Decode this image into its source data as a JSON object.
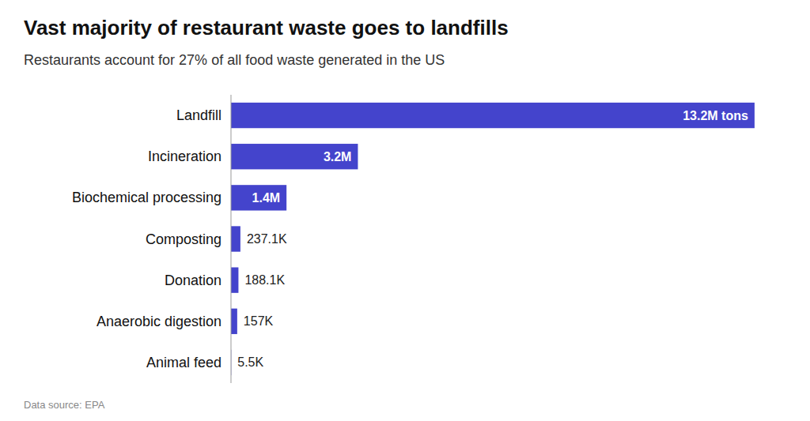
{
  "chart_data": {
    "type": "bar",
    "orientation": "horizontal",
    "title": "Vast majority of restaurant waste goes to landfills",
    "subtitle": "Restaurants account for 27% of all food waste generated in the US",
    "source": "Data source: EPA",
    "categories": [
      "Landfill",
      "Incineration",
      "Biochemical processing",
      "Composting",
      "Donation",
      "Anaerobic digestion",
      "Animal feed"
    ],
    "values": [
      13200000,
      3200000,
      1400000,
      237100,
      188100,
      157000,
      5500
    ],
    "value_labels": [
      "13.2M tons",
      "3.2M",
      "1.4M",
      "237.1K",
      "188.1K",
      "157K",
      "5.5K"
    ],
    "data_labels": true,
    "color": "#4444cc",
    "xlim": [
      0,
      14000000
    ],
    "grid": false,
    "tick_labels": false
  }
}
